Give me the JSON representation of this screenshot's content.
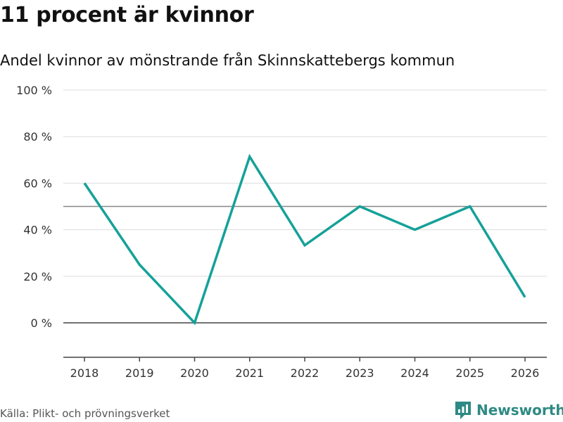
{
  "header": {
    "title": "11 procent är kvinnor",
    "subtitle": "Andel kvinnor av mönstrande från Skinnskattebergs kommun"
  },
  "footer": {
    "source": "Källa: Plikt- och prövningsverket",
    "brand": "Newsworthy"
  },
  "colors": {
    "line": "#15a199",
    "grid": "#dddddd",
    "reference": "#888888",
    "zero": "#444444",
    "brand": "#2e8a84"
  },
  "chart_data": {
    "type": "line",
    "title": "11 procent är kvinnor",
    "subtitle": "Andel kvinnor av mönstrande från Skinnskattebergs kommun",
    "xlabel": "",
    "ylabel": "",
    "categories": [
      "2018",
      "2019",
      "2020",
      "2021",
      "2022",
      "2023",
      "2024",
      "2025",
      "2026"
    ],
    "series": [
      {
        "name": "Andel kvinnor",
        "values": [
          60,
          25,
          0,
          71.4,
          33.3,
          50,
          40,
          50,
          11
        ]
      }
    ],
    "ylim": [
      -15,
      100
    ],
    "yticks": [
      0,
      20,
      40,
      60,
      80,
      100
    ],
    "ytick_labels": [
      "0 %",
      "20 %",
      "40 %",
      "60 %",
      "80 %",
      "100 %"
    ],
    "reference_line": 50,
    "grid": true
  }
}
